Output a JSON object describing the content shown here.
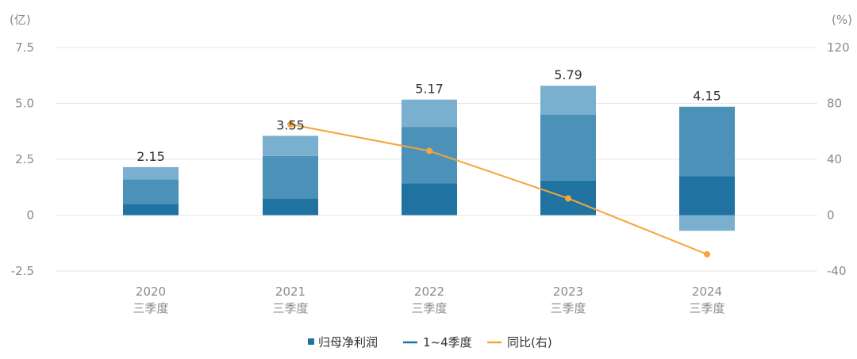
{
  "chart_data": {
    "type": "bar",
    "stacked": true,
    "categories": [
      [
        "2020",
        "三季度"
      ],
      [
        "2021",
        "三季度"
      ],
      [
        "2022",
        "三季度"
      ],
      [
        "2023",
        "三季度"
      ],
      [
        "2024",
        "三季度"
      ]
    ],
    "left_unit": "(亿)",
    "right_unit": "(%)",
    "y_left": {
      "min": -2.5,
      "max": 7.5,
      "ticks": [
        7.5,
        5.0,
        2.5,
        0,
        -2.5
      ],
      "tick_labels": [
        "7.5",
        "5.0",
        "2.5",
        "0",
        "-2.5"
      ]
    },
    "y_right": {
      "min": -40,
      "max": 120,
      "ticks": [
        120,
        80,
        40,
        0,
        -40
      ],
      "tick_labels": [
        "120",
        "80",
        "40",
        "0",
        "-40"
      ]
    },
    "series": [
      {
        "values": [
          0.5,
          0.75,
          1.42,
          1.55,
          1.75
        ],
        "color": "#2073a0"
      },
      {
        "values": [
          1.1,
          1.9,
          2.53,
          2.95,
          3.1
        ],
        "color": "#4b91b8"
      },
      {
        "values": [
          0.55,
          0.9,
          1.22,
          1.29,
          -0.7
        ],
        "color": "#7aafcf"
      }
    ],
    "totals": [
      2.15,
      3.55,
      5.17,
      5.79,
      4.15
    ],
    "total_labels": [
      "2.15",
      "3.55",
      "5.17",
      "5.79",
      "4.15"
    ],
    "yoy": {
      "values": [
        null,
        65,
        46,
        12,
        -28
      ],
      "color": "#f5a53c"
    },
    "grid": true,
    "legend": {
      "position": "bottom",
      "items": [
        {
          "label": "归母净利润",
          "marker": "square",
          "color": "#2073a0"
        },
        {
          "label": "1~4季度",
          "marker": "line",
          "color": "#2073a0"
        },
        {
          "label": "同比(右)",
          "marker": "line-dot",
          "color": "#f5a53c"
        }
      ]
    }
  }
}
